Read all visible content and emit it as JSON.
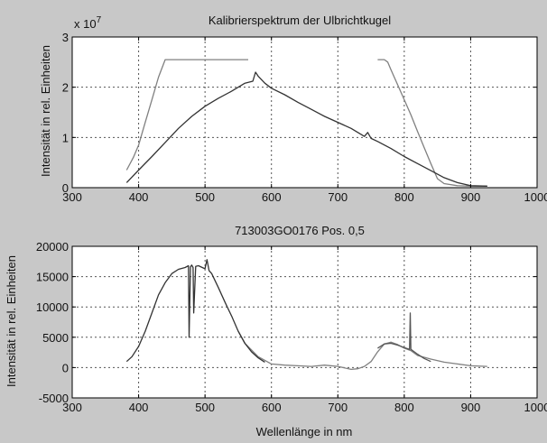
{
  "figure": {
    "background": "#c8c8c8",
    "axes_background": "#ffffff",
    "grid_color": "#555555"
  },
  "chart_data": [
    {
      "type": "line",
      "title": "Kalibrierspektrum der Ulbrichtkugel",
      "xlabel": "",
      "ylabel": "Intensität in rel. Einheiten",
      "exponent_label": "x 10",
      "exponent_power": "7",
      "xlim": [
        300,
        1000
      ],
      "ylim": [
        0,
        3
      ],
      "xticks": [
        300,
        400,
        500,
        600,
        700,
        800,
        900,
        1000
      ],
      "yticks": [
        0,
        1,
        2,
        3
      ],
      "grid": true,
      "series": [
        {
          "color": "#808080",
          "x": [
            382,
            392,
            400,
            410,
            420,
            430,
            440,
            500,
            565
          ],
          "y": [
            0.35,
            0.6,
            0.85,
            1.3,
            1.75,
            2.2,
            2.55,
            2.55,
            2.55
          ]
        },
        {
          "color": "#808080",
          "x": [
            760,
            770,
            775,
            780,
            790,
            800,
            810,
            820,
            830,
            840,
            850,
            860,
            880,
            900,
            925
          ],
          "y": [
            2.55,
            2.55,
            2.5,
            2.35,
            2.05,
            1.75,
            1.45,
            1.12,
            0.8,
            0.48,
            0.18,
            0.08,
            0.04,
            0.03,
            0.03
          ]
        },
        {
          "color": "#333333",
          "x": [
            382,
            400,
            420,
            440,
            460,
            480,
            500,
            520,
            540,
            560,
            572,
            576,
            580,
            590,
            600,
            620,
            640,
            660,
            680,
            700,
            720,
            740,
            745,
            750,
            760,
            780,
            800,
            820,
            840,
            860,
            880,
            900,
            925
          ],
          "y": [
            0.1,
            0.35,
            0.62,
            0.9,
            1.18,
            1.42,
            1.62,
            1.78,
            1.92,
            2.08,
            2.12,
            2.3,
            2.22,
            2.08,
            1.98,
            1.85,
            1.7,
            1.56,
            1.42,
            1.3,
            1.18,
            1.02,
            1.1,
            0.98,
            0.92,
            0.78,
            0.62,
            0.48,
            0.34,
            0.2,
            0.1,
            0.04,
            0.03
          ]
        }
      ]
    },
    {
      "type": "line",
      "title": "713003GO0176 Pos. 0,5",
      "xlabel": "Wellenlänge in nm",
      "ylabel": "Intensität in rel. Einheiten",
      "xlim": [
        300,
        1000
      ],
      "ylim": [
        -5000,
        20000
      ],
      "xticks": [
        300,
        400,
        500,
        600,
        700,
        800,
        900,
        1000
      ],
      "yticks": [
        -5000,
        0,
        5000,
        10000,
        15000,
        20000
      ],
      "grid": true,
      "series": [
        {
          "color": "#808080",
          "x": [
            550,
            560,
            580,
            600,
            620,
            640,
            660,
            680,
            700,
            720,
            730,
            740,
            750,
            760,
            770,
            780,
            790,
            800,
            810,
            820,
            840,
            860,
            880,
            900,
            925
          ],
          "y": [
            6000,
            4000,
            1800,
            600,
            400,
            300,
            200,
            400,
            200,
            -300,
            -200,
            200,
            1000,
            2600,
            3900,
            4200,
            3800,
            3200,
            2800,
            2000,
            1400,
            900,
            600,
            300,
            200
          ]
        },
        {
          "color": "#333333",
          "x": [
            382,
            390,
            400,
            410,
            420,
            430,
            440,
            450,
            460,
            470,
            475,
            476,
            478,
            480,
            482,
            483,
            486,
            490,
            500,
            503,
            506,
            510,
            520,
            530,
            540,
            550,
            560,
            570,
            580,
            590
          ],
          "y": [
            1000,
            1800,
            3500,
            6000,
            9000,
            12000,
            14000,
            15500,
            16200,
            16500,
            16800,
            5000,
            16600,
            16900,
            16500,
            9000,
            16700,
            16800,
            16300,
            17800,
            16000,
            15500,
            13200,
            10800,
            8500,
            6000,
            4000,
            2600,
            1600,
            900
          ]
        },
        {
          "color": "#555555",
          "x": [
            760,
            770,
            780,
            790,
            800,
            808,
            809,
            810,
            820,
            830,
            840
          ],
          "y": [
            3200,
            3900,
            4000,
            3700,
            3300,
            3000,
            9000,
            3000,
            2200,
            1500,
            1000
          ]
        }
      ]
    }
  ]
}
